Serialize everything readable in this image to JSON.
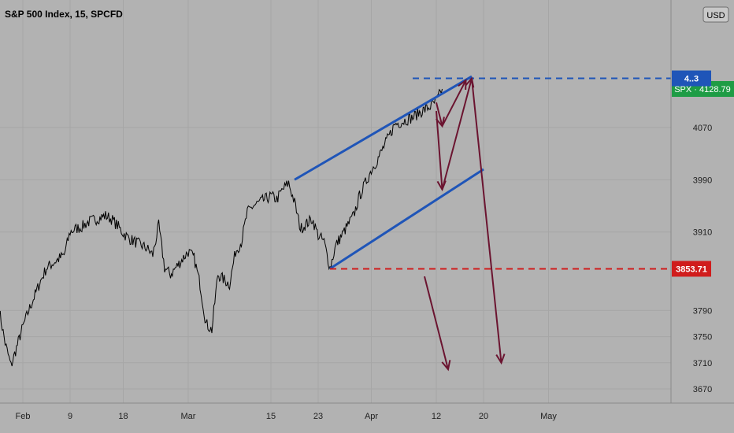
{
  "header": {
    "title": "S&P 500 Index, 15, SPCFD"
  },
  "currency_button": {
    "label": "USD"
  },
  "colors": {
    "background": "#b2b2b2",
    "grid": "#a6a6a6",
    "price_line": "#000000",
    "channel": "#1f55b8",
    "arrows": "#6b1430",
    "support": "#d01c1c",
    "resistance": "#1f55b8",
    "spx_badge": "#1e9c45"
  },
  "chart_data": {
    "type": "line",
    "title": "S&P 500 Index, 15, SPCFD",
    "xlabel": "",
    "ylabel": "",
    "ylim": [
      3645,
      4155
    ],
    "y_ticks": [
      3670,
      3710,
      3750,
      3790,
      3910,
      3990,
      4070
    ],
    "x_ticks": [
      "Feb",
      "9",
      "18",
      "Mar",
      "15",
      "23",
      "Apr",
      "12",
      "20",
      "May"
    ],
    "grid": true,
    "series": [
      {
        "name": "SPX",
        "points": [
          [
            "Jan 28",
            3790
          ],
          [
            "Jan 29",
            3740
          ],
          [
            "Jan 30",
            3705
          ],
          [
            "Feb 1",
            3765
          ],
          [
            "Feb 2",
            3790
          ],
          [
            "Feb 4",
            3835
          ],
          [
            "Feb 5",
            3855
          ],
          [
            "Feb 8",
            3875
          ],
          [
            "Feb 9",
            3910
          ],
          [
            "Feb 10",
            3915
          ],
          [
            "Feb 11",
            3918
          ],
          [
            "Feb 12",
            3925
          ],
          [
            "Feb 15",
            3935
          ],
          [
            "Feb 16",
            3930
          ],
          [
            "Feb 17",
            3920
          ],
          [
            "Feb 18",
            3908
          ],
          [
            "Feb 19",
            3900
          ],
          [
            "Feb 22",
            3885
          ],
          [
            "Feb 23",
            3875
          ],
          [
            "Feb 24",
            3920
          ],
          [
            "Feb 25",
            3855
          ],
          [
            "Feb 26",
            3845
          ],
          [
            "Mar 1",
            3880
          ],
          [
            "Mar 2",
            3870
          ],
          [
            "Mar 3",
            3830
          ],
          [
            "Mar 4",
            3770
          ],
          [
            "Mar 5",
            3760
          ],
          [
            "Mar 6",
            3845
          ],
          [
            "Mar 8",
            3830
          ],
          [
            "Mar 9",
            3880
          ],
          [
            "Mar 10",
            3895
          ],
          [
            "Mar 11",
            3940
          ],
          [
            "Mar 12",
            3950
          ],
          [
            "Mar 15",
            3965
          ],
          [
            "Mar 16",
            3960
          ],
          [
            "Mar 17",
            3975
          ],
          [
            "Mar 18",
            3985
          ],
          [
            "Mar 19",
            3955
          ],
          [
            "Mar 20",
            3915
          ],
          [
            "Mar 22",
            3930
          ],
          [
            "Mar 23",
            3905
          ],
          [
            "Mar 24",
            3895
          ],
          [
            "Mar 25",
            3855
          ],
          [
            "Mar 26",
            3890
          ],
          [
            "Mar 29",
            3935
          ],
          [
            "Mar 30",
            3965
          ],
          [
            "Mar 31",
            3985
          ],
          [
            "Apr 1",
            4005
          ],
          [
            "Apr 2",
            4020
          ],
          [
            "Apr 5",
            4075
          ],
          [
            "Apr 6",
            4078
          ],
          [
            "Apr 7",
            4082
          ],
          [
            "Apr 8",
            4085
          ],
          [
            "Apr 9",
            4092
          ],
          [
            "Apr 11",
            4102
          ],
          [
            "Apr 12",
            4110
          ],
          [
            "Apr 13",
            4128.79
          ]
        ]
      }
    ],
    "price_labels": [
      {
        "name": "SPX",
        "text": "SPX",
        "value": 4128.79,
        "value_text": "4128.79"
      },
      {
        "name": "support",
        "value": 3853.71,
        "value_text": "3853.71"
      },
      {
        "name": "resistance",
        "value": 4145,
        "value_text": "4..3"
      }
    ],
    "drawings": {
      "channel_upper": [
        [
          "Mar 19",
          3990
        ],
        [
          "Apr 18",
          4148
        ]
      ],
      "channel_lower": [
        [
          "Mar 25",
          3854
        ],
        [
          "Apr 20",
          4006
        ]
      ],
      "support_line": {
        "value": 3853.71,
        "from": "Mar 25",
        "style": "dashed"
      },
      "resistance_line": {
        "value": 4145,
        "from": "Apr 8",
        "style": "dashed"
      },
      "arrows": [
        {
          "path": [
            [
              "Apr 12",
              4108
            ],
            [
              "Apr 13",
              4072
            ]
          ]
        },
        {
          "path": [
            [
              "Apr 13",
              4072
            ],
            [
              "Apr 17",
              4142
            ]
          ]
        },
        {
          "path": [
            [
              "Apr 12",
              4095
            ],
            [
              "Apr 13",
              3975
            ]
          ]
        },
        {
          "path": [
            [
              "Apr 13",
              3975
            ],
            [
              "Apr 18",
              4145
            ]
          ]
        },
        {
          "path": [
            [
              "Apr 18",
              4145
            ],
            [
              "Apr 23",
              3710
            ]
          ]
        },
        {
          "path": [
            [
              "Apr 10",
              3842
            ],
            [
              "Apr 14",
              3700
            ]
          ]
        }
      ]
    }
  }
}
